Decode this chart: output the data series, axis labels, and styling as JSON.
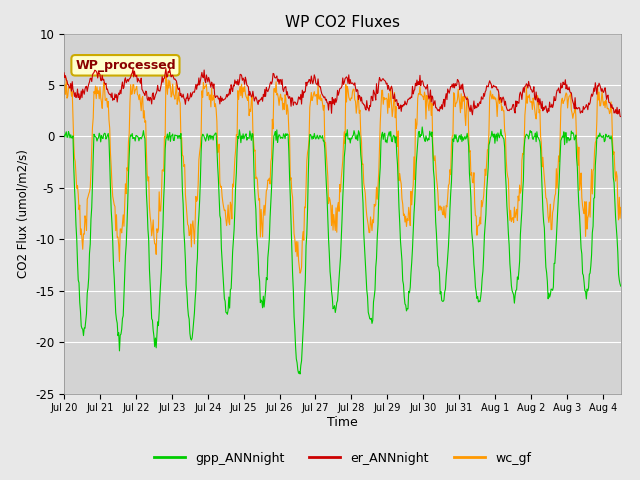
{
  "title": "WP CO2 Fluxes",
  "xlabel": "Time",
  "ylabel_display": "CO2 Flux (umol/m2/s)",
  "ylim": [
    -25,
    10
  ],
  "yticks": [
    -25,
    -20,
    -15,
    -10,
    -5,
    0,
    5,
    10
  ],
  "bg_color": "#e8e8e8",
  "plot_bg_color": "#d3d3d3",
  "legend_labels": [
    "gpp_ANNnight",
    "er_ANNnight",
    "wc_gf"
  ],
  "legend_colors": [
    "#00cc00",
    "#cc0000",
    "#ff9900"
  ],
  "annotation_text": "WP_processed",
  "annotation_color": "#8b0000",
  "annotation_bg": "#ffffcc",
  "annotation_border": "#ccaa00",
  "line_colors": {
    "gpp": "#00cc00",
    "er": "#cc0000",
    "wc": "#ff9900"
  },
  "days": 15.5,
  "n_points": 744,
  "figsize": [
    6.4,
    4.8
  ],
  "dpi": 100
}
